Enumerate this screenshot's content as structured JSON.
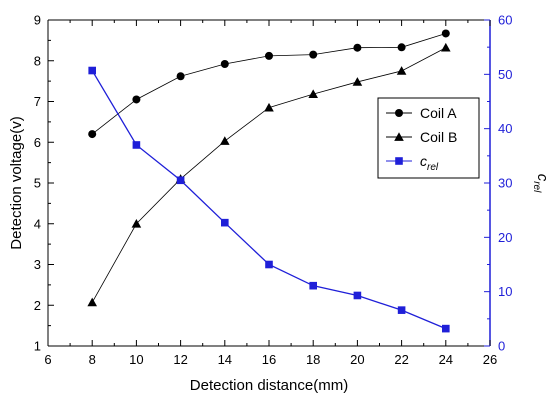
{
  "chart_data": {
    "type": "line",
    "title": "",
    "xlabel": "Detection distance(mm)",
    "ylabel": "Detection voltage(v)",
    "y2label": {
      "base": "c",
      "sub": "rel"
    },
    "xlim": [
      6,
      26
    ],
    "ylim": [
      1,
      9
    ],
    "y2lim": [
      0,
      60
    ],
    "xticks": [
      6,
      8,
      10,
      12,
      14,
      16,
      18,
      20,
      22,
      24,
      26
    ],
    "yticks": [
      1,
      2,
      3,
      4,
      5,
      6,
      7,
      8,
      9
    ],
    "y2ticks": [
      0,
      10,
      20,
      30,
      40,
      50,
      60
    ],
    "grid": false,
    "legend_position": "right",
    "x": [
      8,
      10,
      12,
      14,
      16,
      18,
      20,
      22,
      24
    ],
    "series": [
      {
        "name": "Coil A",
        "axis": "left",
        "marker": "circle",
        "color": "#000000",
        "values": [
          6.2,
          7.05,
          7.62,
          7.92,
          8.12,
          8.15,
          8.32,
          8.33,
          8.67
        ]
      },
      {
        "name": "Coil B",
        "axis": "left",
        "marker": "triangle",
        "color": "#000000",
        "values": [
          2.07,
          4.0,
          5.1,
          6.03,
          6.85,
          7.18,
          7.48,
          7.75,
          8.32
        ]
      },
      {
        "name": {
          "base": "c",
          "sub": "rel"
        },
        "axis": "right",
        "marker": "square",
        "color": "#1f1fd8",
        "values": [
          50.7,
          37.0,
          30.5,
          22.7,
          15.0,
          11.1,
          9.3,
          6.6,
          3.2
        ]
      }
    ]
  }
}
